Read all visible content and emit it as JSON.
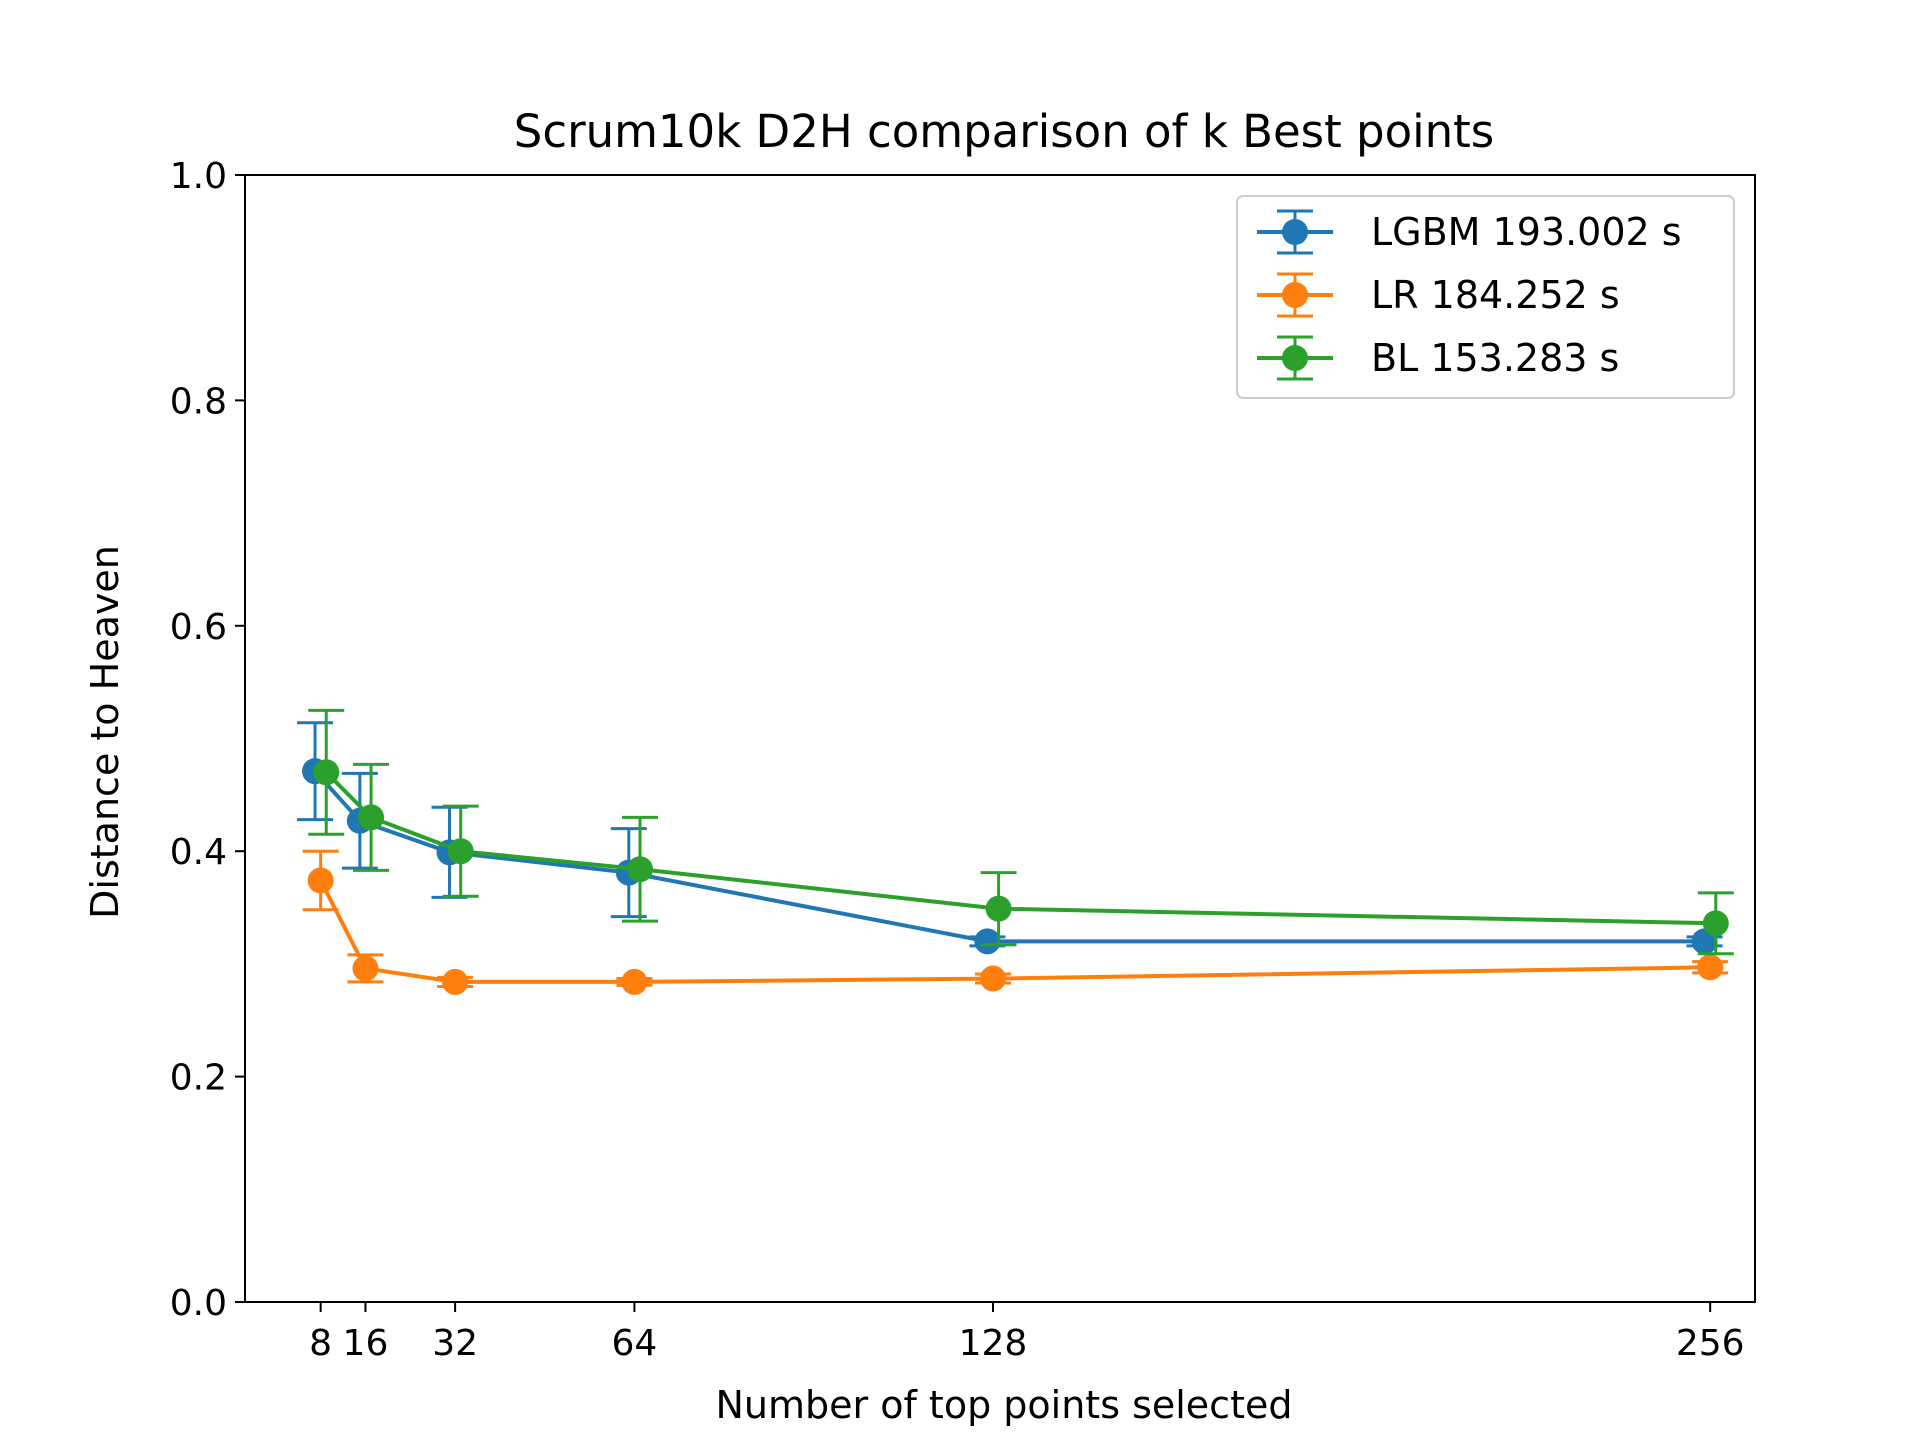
{
  "chart_data": {
    "type": "line",
    "title": "Scrum10k D2H comparison of k Best points",
    "xlabel": "Number of top points selected",
    "ylabel": "Distance to Heaven",
    "xlim": [
      -5.5,
      264
    ],
    "ylim": [
      0.0,
      1.0
    ],
    "x_ticks": [
      8,
      16,
      32,
      64,
      128,
      256
    ],
    "x_tick_labels": [
      "8",
      "16",
      "32",
      "64",
      "128",
      "256"
    ],
    "y_ticks": [
      0.0,
      0.2,
      0.4,
      0.6,
      0.8,
      1.0
    ],
    "y_tick_labels": [
      "0.0",
      "0.2",
      "0.4",
      "0.6",
      "0.8",
      "1.0"
    ],
    "grid": false,
    "legend_position": "top-right",
    "series": [
      {
        "name": "LGBM 193.002 s",
        "color": "#1f77b4",
        "x": [
          7,
          15,
          31,
          63,
          127,
          255
        ],
        "y": [
          0.471,
          0.427,
          0.399,
          0.381,
          0.32,
          0.32
        ],
        "err": [
          0.043,
          0.042,
          0.04,
          0.039,
          0.004,
          0.004
        ]
      },
      {
        "name": "LR 184.252 s",
        "color": "#ff7f0e",
        "x": [
          8,
          16,
          32,
          64,
          128,
          256
        ],
        "y": [
          0.374,
          0.296,
          0.284,
          0.284,
          0.287,
          0.297
        ],
        "err": [
          0.026,
          0.012,
          0.004,
          0.003,
          0.004,
          0.005
        ]
      },
      {
        "name": "BL 153.283 s",
        "color": "#2ca02c",
        "x": [
          9,
          17,
          33,
          65,
          129,
          257
        ],
        "y": [
          0.47,
          0.43,
          0.4,
          0.384,
          0.349,
          0.336
        ],
        "err": [
          0.055,
          0.047,
          0.04,
          0.046,
          0.032,
          0.027
        ]
      }
    ]
  }
}
